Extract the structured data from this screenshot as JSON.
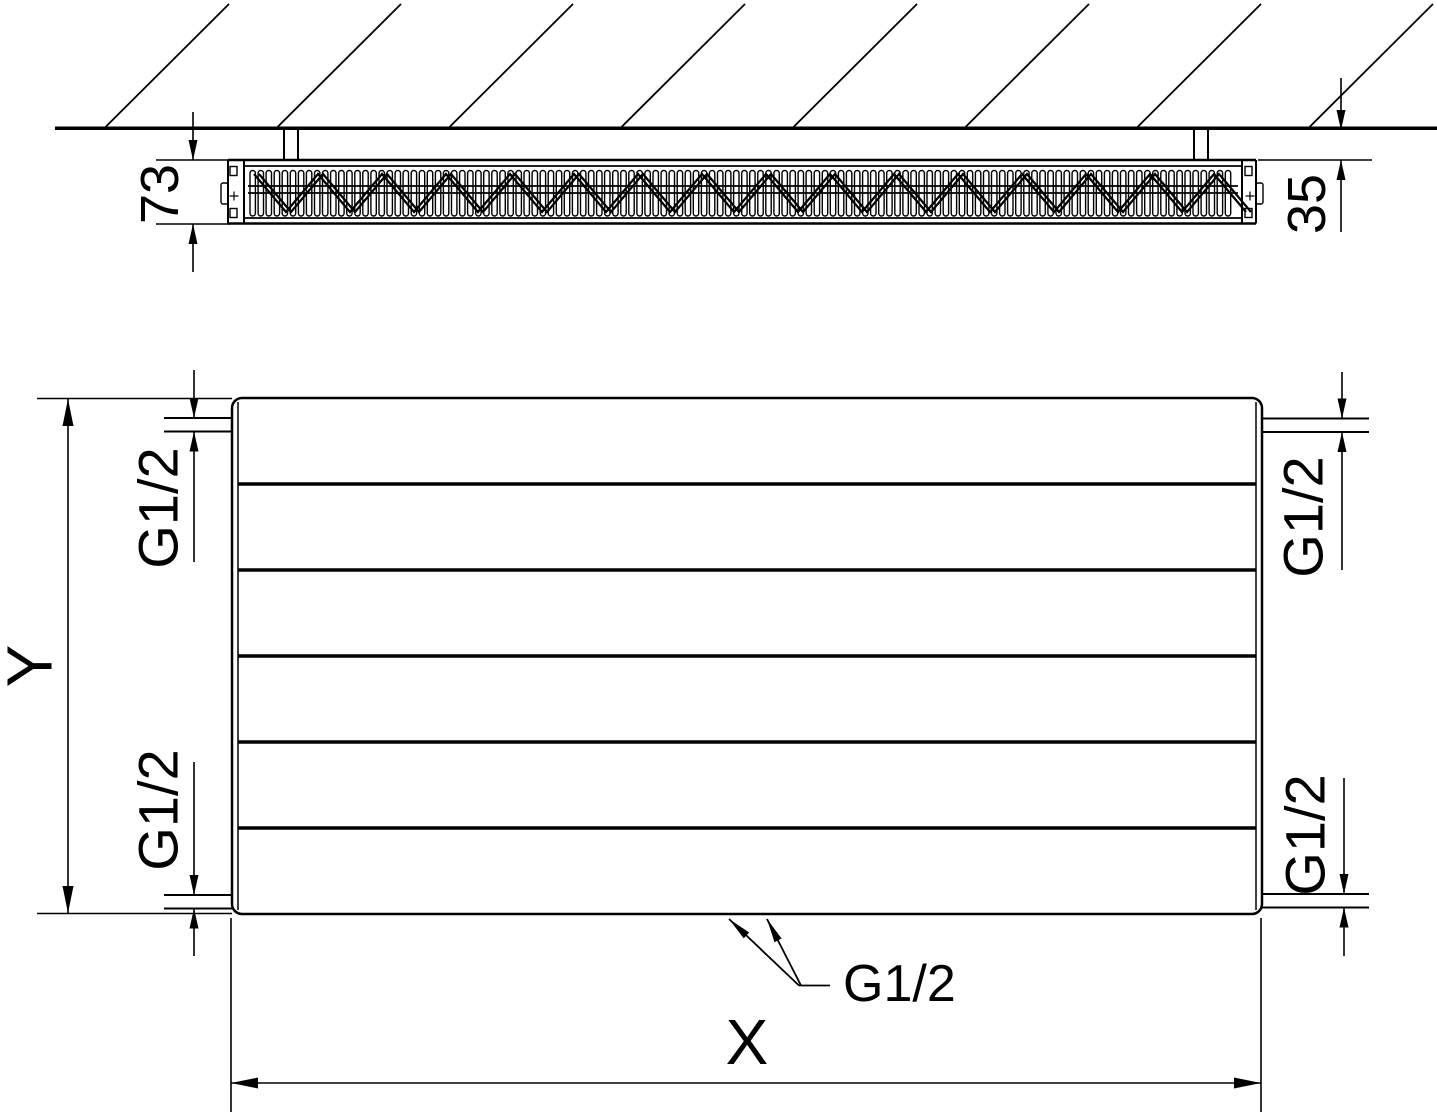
{
  "drawing": {
    "dimensions": {
      "depth": "73",
      "wall_clearance": "35",
      "height_label": "Y",
      "width_label": "X"
    },
    "connections": {
      "top_left": "G1/2",
      "bottom_left": "G1/2",
      "top_right": "G1/2",
      "bottom_right": "G1/2",
      "bottom_center": "G1/2"
    },
    "colors": {
      "line": "#000000",
      "background": "#ffffff"
    }
  }
}
